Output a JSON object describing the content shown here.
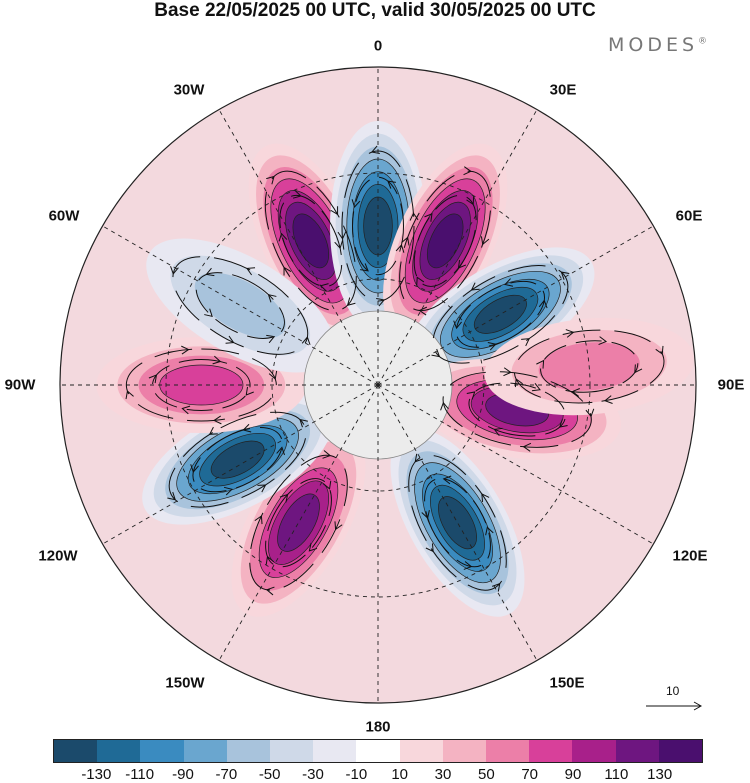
{
  "title": "Base 22/05/2025 00 UTC, valid 30/05/2025 00 UTC",
  "brand": "MODES",
  "brand_mark": "®",
  "longitude_labels": {
    "n0": "0",
    "n30e": "30E",
    "n60e": "60E",
    "n90e": "90E",
    "n120e": "120E",
    "n150e": "150E",
    "n180": "180",
    "n150w": "150W",
    "n120w": "120W",
    "n90w": "90W",
    "n60w": "60W",
    "n30w": "30W"
  },
  "reference_vector": "10",
  "colorbar": {
    "colors": [
      "#1b4a6b",
      "#1f6a96",
      "#3a8bc0",
      "#6aa6cf",
      "#a8c3dc",
      "#cfd9e8",
      "#e8e8f2",
      "#ffffff",
      "#f8d7dc",
      "#f4b3c2",
      "#ec7fa8",
      "#d8409a",
      "#a8208a",
      "#6e1680",
      "#4a0f6e"
    ],
    "labels": [
      "-130",
      "-110",
      "-90",
      "-70",
      "-50",
      "-30",
      "-10",
      "10",
      "30",
      "50",
      "70",
      "90",
      "110",
      "130"
    ]
  },
  "anomaly_centers": [
    {
      "lon": -25,
      "lat": -45,
      "sign": "positive",
      "magnitude": 130
    },
    {
      "lon": 0,
      "lat": -45,
      "sign": "negative",
      "magnitude": 130
    },
    {
      "lon": 25,
      "lat": -45,
      "sign": "positive",
      "magnitude": 130
    },
    {
      "lon": 60,
      "lat": -50,
      "sign": "negative",
      "magnitude": 130
    },
    {
      "lon": 100,
      "lat": -50,
      "sign": "positive",
      "magnitude": 110
    },
    {
      "lon": 150,
      "lat": -45,
      "sign": "negative",
      "magnitude": 130
    },
    {
      "lon": -150,
      "lat": -45,
      "sign": "positive",
      "magnitude": 110
    },
    {
      "lon": -118,
      "lat": -45,
      "sign": "negative",
      "magnitude": 130
    },
    {
      "lon": -90,
      "lat": -40,
      "sign": "positive",
      "magnitude": 70
    },
    {
      "lon": -60,
      "lat": -45,
      "sign": "negative",
      "magnitude": 50
    },
    {
      "lon": 85,
      "lat": -30,
      "sign": "positive",
      "magnitude": 50
    }
  ]
}
